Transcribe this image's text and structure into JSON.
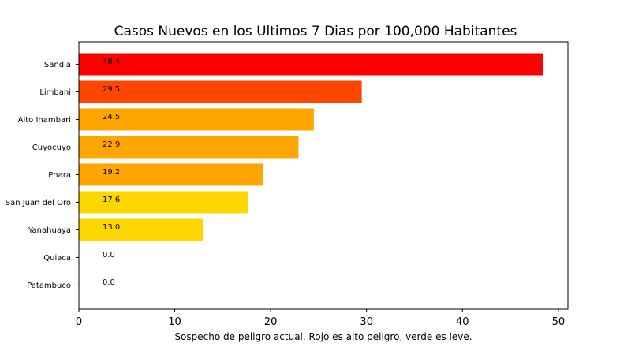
{
  "chart_data": {
    "type": "bar",
    "orientation": "horizontal",
    "title": "Casos Nuevos en los Ultimos 7 Dias por 100,000 Habitantes",
    "xlabel": "Sospecho de peligro actual. Rojo es alto peligro, verde es leve.",
    "ylabel": "",
    "categories": [
      "Sandia",
      "Limbani",
      "Alto Inambari",
      "Cuyocuyo",
      "Phara",
      "San Juan del Oro",
      "Yanahuaya",
      "Quiaca",
      "Patambuco"
    ],
    "values": [
      48.4,
      29.5,
      24.5,
      22.9,
      19.2,
      17.6,
      13.0,
      0.0,
      0.0
    ],
    "value_labels": [
      "48.4",
      "29.5",
      "24.5",
      "22.9",
      "19.2",
      "17.6",
      "13.0",
      "0.0",
      "0.0"
    ],
    "colors": [
      "#ff0000",
      "#ff4500",
      "#ffa500",
      "#ffa500",
      "#ffa500",
      "#ffd700",
      "#ffd700",
      "#ffd700",
      "#ffd700"
    ],
    "xlim": [
      0,
      51
    ],
    "xticks": [
      0,
      10,
      20,
      30,
      40,
      50
    ],
    "xtick_labels": [
      "0",
      "10",
      "20",
      "30",
      "40",
      "50"
    ],
    "grid": false,
    "legend": "none"
  }
}
